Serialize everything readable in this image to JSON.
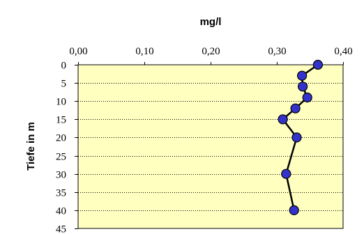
{
  "chart_data": {
    "type": "line",
    "title": "",
    "xlabel": "mg/l",
    "ylabel": "Tiefe in m",
    "xlim": [
      0,
      0.4
    ],
    "ylim": [
      0,
      45
    ],
    "y_inverted": true,
    "x_axis_position": "top",
    "x_ticks": [
      "0,00",
      "0,10",
      "0,20",
      "0,30",
      "0,40"
    ],
    "y_ticks": [
      "0",
      "5",
      "10",
      "15",
      "20",
      "25",
      "30",
      "35",
      "40",
      "45"
    ],
    "grid": "horizontal-dotted",
    "legend": "none",
    "series": [
      {
        "x": [
          0.362,
          0.338,
          0.339,
          0.346,
          0.328,
          0.309,
          0.33,
          0.314,
          0.326
        ],
        "y": [
          0,
          3,
          6,
          9,
          12,
          15,
          20,
          30,
          40
        ]
      }
    ],
    "colors": {
      "plot_bg": "#FFFFC0",
      "marker_fill": "#3333CC",
      "marker_stroke": "#000000",
      "line": "#000000"
    }
  }
}
